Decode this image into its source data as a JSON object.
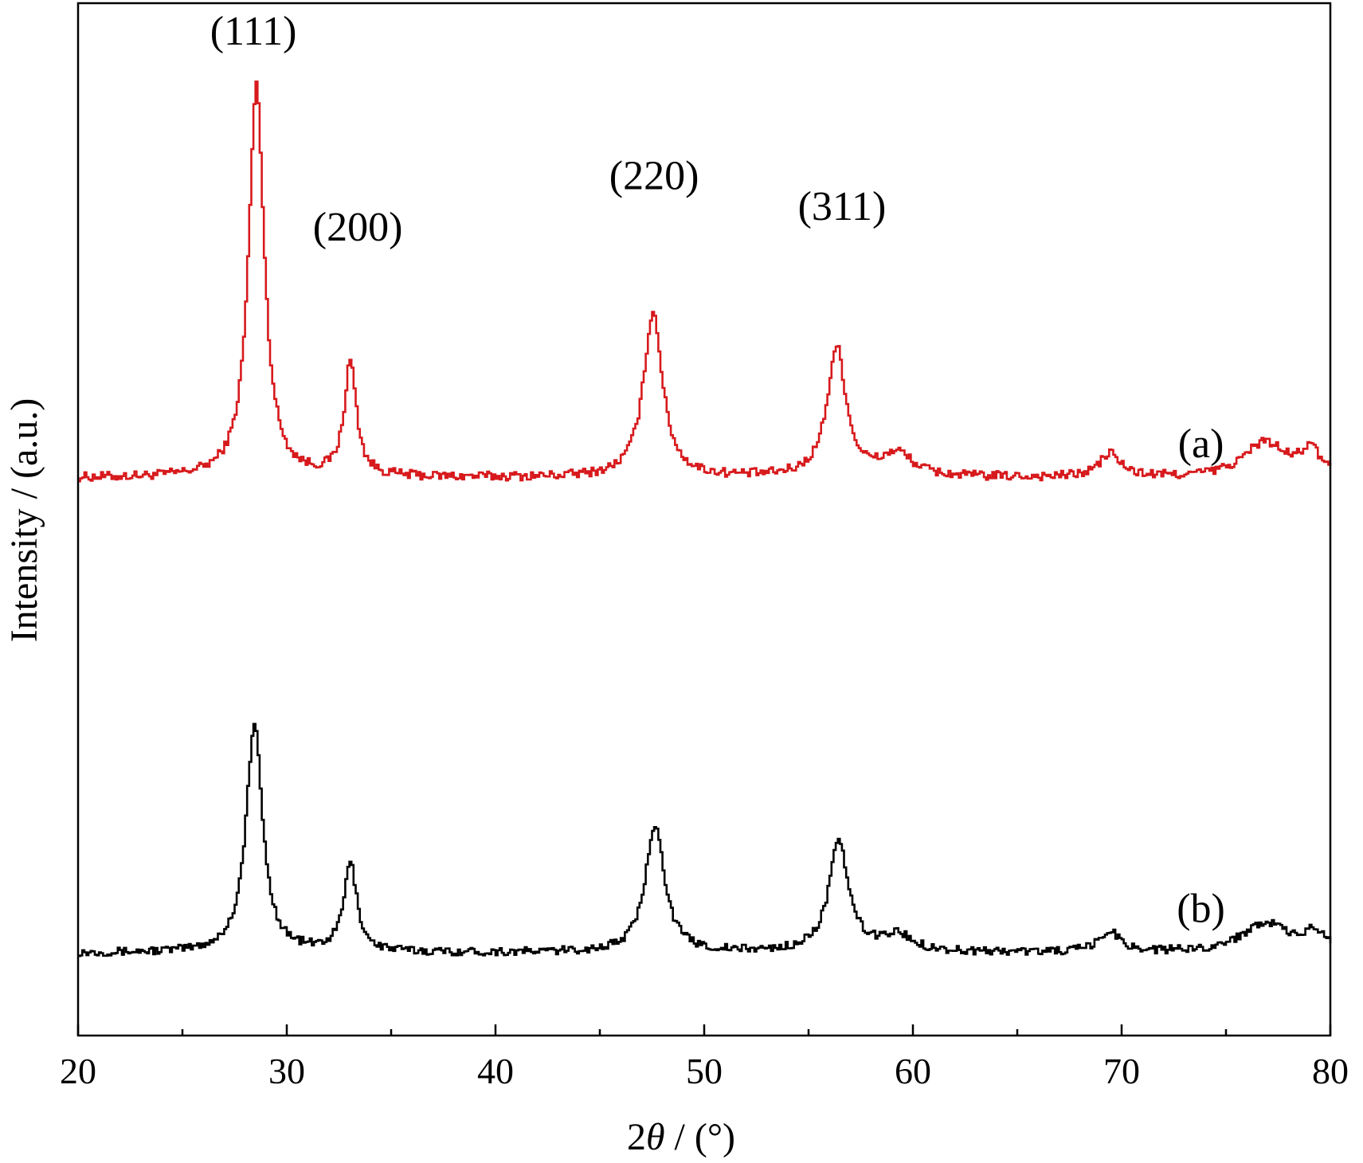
{
  "chart_data": {
    "type": "line",
    "xlabel": "2θ / (°)",
    "xlabel_parts": {
      "prefix": "2",
      "theta": "θ",
      "suffix": " / (°)"
    },
    "ylabel": "Intensity / (a.u.)",
    "xlim": [
      20,
      80
    ],
    "ylim": [
      0,
      100
    ],
    "grid": false,
    "x_major_ticks": [
      20,
      30,
      40,
      50,
      60,
      70,
      80
    ],
    "x_minor_ticks": [
      25,
      35,
      45,
      55,
      65,
      75
    ],
    "y_tick_labels": false,
    "series": [
      {
        "name": "(a)",
        "color": "#d7191c",
        "baseline": 54,
        "noise": 0.9,
        "peaks": [
          {
            "x": 28.5,
            "h": 38,
            "w": 0.45
          },
          {
            "x": 33.0,
            "h": 11,
            "w": 0.35
          },
          {
            "x": 47.5,
            "h": 16,
            "w": 0.55
          },
          {
            "x": 56.3,
            "h": 12.5,
            "w": 0.55
          },
          {
            "x": 59.2,
            "h": 2.2,
            "w": 0.9
          },
          {
            "x": 69.4,
            "h": 2.3,
            "w": 0.6
          },
          {
            "x": 76.8,
            "h": 3.4,
            "w": 1.2
          },
          {
            "x": 79.0,
            "h": 2.4,
            "w": 0.6
          }
        ]
      },
      {
        "name": "(b)",
        "color": "#000000",
        "baseline": 8,
        "noise": 0.8,
        "peaks": [
          {
            "x": 28.4,
            "h": 22,
            "w": 0.48
          },
          {
            "x": 33.0,
            "h": 8.5,
            "w": 0.38
          },
          {
            "x": 47.6,
            "h": 12.5,
            "w": 0.55
          },
          {
            "x": 56.4,
            "h": 10.5,
            "w": 0.58
          },
          {
            "x": 59.2,
            "h": 1.6,
            "w": 0.9
          },
          {
            "x": 69.4,
            "h": 2.0,
            "w": 0.6
          },
          {
            "x": 76.8,
            "h": 2.9,
            "w": 1.3
          },
          {
            "x": 79.2,
            "h": 1.8,
            "w": 0.6
          }
        ]
      }
    ],
    "annotations": [
      {
        "text": "(111)",
        "x": 28.4,
        "y": 96
      },
      {
        "text": "(200)",
        "x": 33.4,
        "y": 77
      },
      {
        "text": "(220)",
        "x": 47.6,
        "y": 82
      },
      {
        "text": "(311)",
        "x": 56.6,
        "y": 79
      },
      {
        "text": "(a)",
        "x": 73.8,
        "y": 56
      },
      {
        "text": "(b)",
        "x": 73.8,
        "y": 11
      }
    ]
  }
}
